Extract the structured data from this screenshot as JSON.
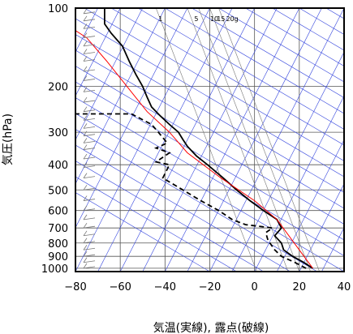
{
  "chart_data": {
    "type": "line",
    "title": "",
    "xlabel": "気温(実線), 露点(破線)",
    "ylabel": "気圧(hPa)",
    "xlim": [
      -80,
      40
    ],
    "ylim": [
      1030,
      100
    ],
    "y_scale": "log",
    "grid": true,
    "x_ticks": [
      "−80",
      "−60",
      "−40",
      "−20",
      "0",
      "20",
      "40"
    ],
    "x_tick_values": [
      -80,
      -60,
      -40,
      -20,
      0,
      20,
      40
    ],
    "y_ticks": [
      "100",
      "200",
      "300",
      "400",
      "500",
      "600",
      "700",
      "800",
      "900",
      "1000"
    ],
    "y_tick_values": [
      100,
      200,
      300,
      400,
      500,
      600,
      700,
      800,
      900,
      1000
    ],
    "mixing_ratio_labels": [
      "1",
      "5",
      "10",
      "15",
      "20g"
    ],
    "series": [
      {
        "style": "solid",
        "color": "#000000",
        "points": [
          [
            26,
            1000
          ],
          [
            22,
            950
          ],
          [
            17,
            900
          ],
          [
            13,
            850
          ],
          [
            12,
            800
          ],
          [
            9,
            750
          ],
          [
            12,
            700
          ],
          [
            10,
            650
          ],
          [
            4,
            600
          ],
          [
            -2,
            550
          ],
          [
            -8,
            500
          ],
          [
            -14,
            450
          ],
          [
            -21,
            400
          ],
          [
            -26,
            370
          ],
          [
            -30,
            340
          ],
          [
            -32,
            320
          ],
          [
            -34,
            300
          ],
          [
            -38,
            280
          ],
          [
            -42,
            260
          ],
          [
            -46,
            240
          ],
          [
            -48,
            220
          ],
          [
            -50,
            200
          ],
          [
            -53,
            180
          ],
          [
            -56,
            160
          ],
          [
            -59,
            140
          ],
          [
            -64,
            125
          ],
          [
            -67,
            115
          ],
          [
            -67,
            105
          ],
          [
            -67,
            100
          ]
        ]
      },
      {
        "style": "dashed",
        "color": "#000000",
        "points": [
          [
            23,
            1000
          ],
          [
            18,
            950
          ],
          [
            12,
            900
          ],
          [
            9,
            850
          ],
          [
            6,
            780
          ],
          [
            5,
            730
          ],
          [
            8,
            700
          ],
          [
            -4,
            680
          ],
          [
            -10,
            650
          ],
          [
            -16,
            600
          ],
          [
            -24,
            550
          ],
          [
            -32,
            500
          ],
          [
            -41,
            450
          ],
          [
            -38,
            400
          ],
          [
            -44,
            390
          ],
          [
            -38,
            360
          ],
          [
            -44,
            345
          ],
          [
            -39,
            330
          ],
          [
            -43,
            300
          ],
          [
            -46,
            280
          ],
          [
            -55,
            255
          ],
          [
            -80,
            255
          ]
        ]
      },
      {
        "style": "solid",
        "color": "#ff0000",
        "points": [
          [
            26,
            1000
          ],
          [
            10,
            650
          ],
          [
            0,
            550
          ],
          [
            -15,
            450
          ],
          [
            -30,
            360
          ],
          [
            -38,
            300
          ],
          [
            -48,
            250
          ],
          [
            -57,
            200
          ],
          [
            -66,
            160
          ],
          [
            -75,
            130
          ],
          [
            -80,
            122
          ]
        ]
      }
    ]
  }
}
